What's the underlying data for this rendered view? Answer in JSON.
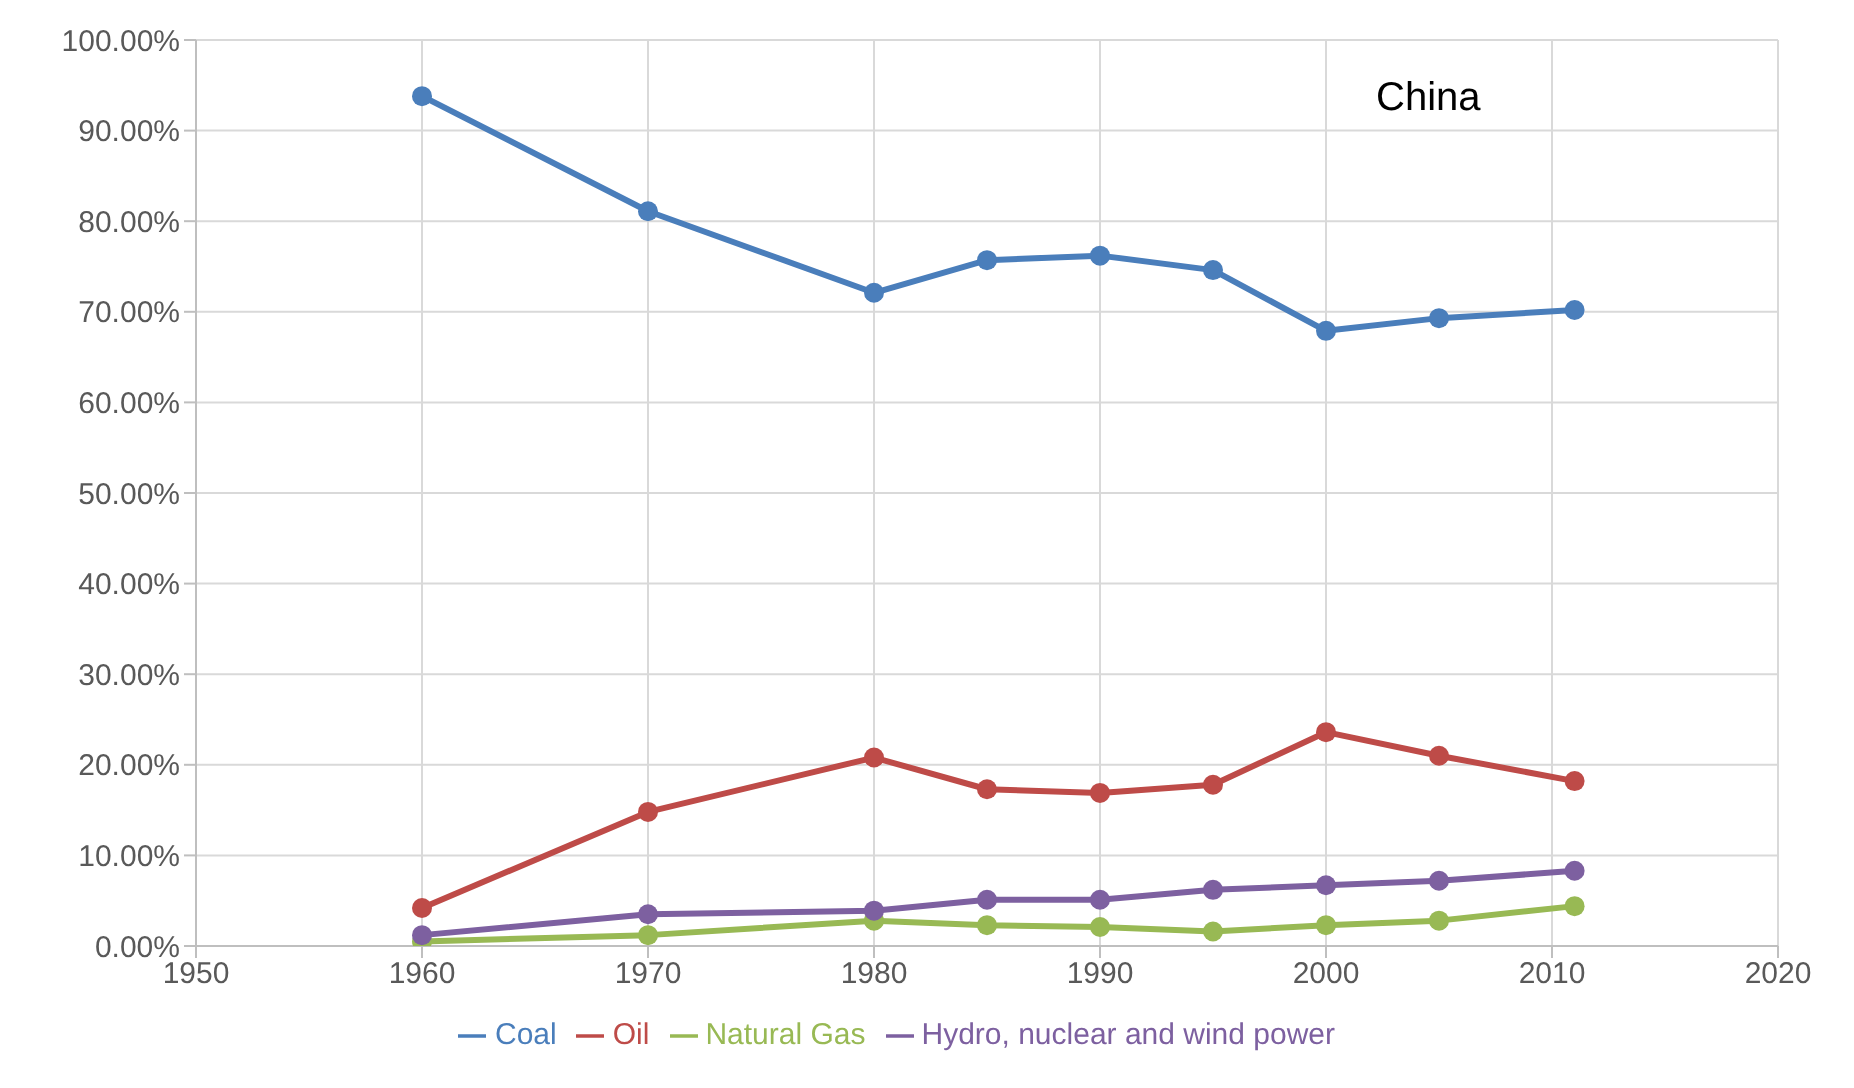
{
  "chart_data": {
    "type": "line",
    "annotations": [
      "China"
    ],
    "x": [
      1960,
      1970,
      1980,
      1985,
      1990,
      1995,
      2000,
      2005,
      2011
    ],
    "series": [
      {
        "name": "Coal",
        "color": "#4a7ebb",
        "values": [
          93.8,
          81.1,
          72.1,
          75.7,
          76.2,
          74.6,
          67.9,
          69.3,
          70.2
        ]
      },
      {
        "name": "Oil",
        "color": "#be4b48",
        "values": [
          4.2,
          14.8,
          20.8,
          17.3,
          16.9,
          17.8,
          23.6,
          21.0,
          18.2
        ]
      },
      {
        "name": "Natural Gas",
        "color": "#98b954",
        "values": [
          0.5,
          1.2,
          2.8,
          2.3,
          2.1,
          1.6,
          2.3,
          2.8,
          4.4
        ]
      },
      {
        "name": "Hydro, nuclear and wind power",
        "color": "#7d60a0",
        "values": [
          1.2,
          3.5,
          3.9,
          5.1,
          5.1,
          6.2,
          6.7,
          7.2,
          8.3
        ]
      }
    ],
    "xlim": [
      1950,
      2020
    ],
    "xticks": [
      1950,
      1960,
      1970,
      1980,
      1990,
      2000,
      2010,
      2020
    ],
    "ylim": [
      0,
      100
    ],
    "yticks": [
      {
        "value": 0,
        "label": "0.00%"
      },
      {
        "value": 10,
        "label": "10.00%"
      },
      {
        "value": 20,
        "label": "20.00%"
      },
      {
        "value": 30,
        "label": "30.00%"
      },
      {
        "value": 40,
        "label": "40.00%"
      },
      {
        "value": 50,
        "label": "50.00%"
      },
      {
        "value": 60,
        "label": "60.00%"
      },
      {
        "value": 70,
        "label": "70.00%"
      },
      {
        "value": 80,
        "label": "80.00%"
      },
      {
        "value": 90,
        "label": "90.00%"
      },
      {
        "value": 100,
        "label": "100.00%"
      }
    ],
    "grid": true,
    "legend": "bottom",
    "marker": "circle"
  }
}
